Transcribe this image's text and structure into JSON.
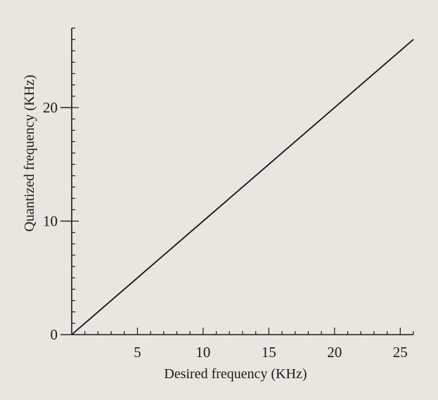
{
  "chart_data": {
    "type": "line",
    "xlabel": "Desired frequency (KHz)",
    "ylabel": "Quantized frequency (KHz)",
    "xlim": [
      0,
      26
    ],
    "ylim": [
      0,
      27
    ],
    "xticks": [
      5,
      10,
      15,
      20,
      25
    ],
    "yticks": [
      0,
      10,
      20
    ],
    "x_tick_labels": [
      "5",
      "10",
      "15",
      "20",
      "25"
    ],
    "y_tick_labels": [
      "0",
      "10",
      "20"
    ],
    "grid": false,
    "series": [
      {
        "style": "diagonal",
        "x": [
          0,
          26
        ],
        "y": [
          0,
          26
        ]
      },
      {
        "style": "staircase",
        "x": [
          0,
          5.0,
          5.0,
          5.5,
          5.5,
          6.0,
          6.0,
          6.6,
          6.6,
          7.3,
          7.3,
          8.1,
          8.1,
          9.0,
          9.0,
          10.2,
          10.2,
          11.7,
          11.7,
          14.8,
          14.8,
          20.5,
          20.5,
          26
        ],
        "y": [
          0,
          5.0,
          5.0,
          5.5,
          5.5,
          6.0,
          6.0,
          6.6,
          6.6,
          7.3,
          7.3,
          8.1,
          8.1,
          9.0,
          9.0,
          10.2,
          10.2,
          11.7,
          11.7,
          14.8,
          14.8,
          20.5,
          20.5,
          26.0
        ]
      }
    ]
  }
}
